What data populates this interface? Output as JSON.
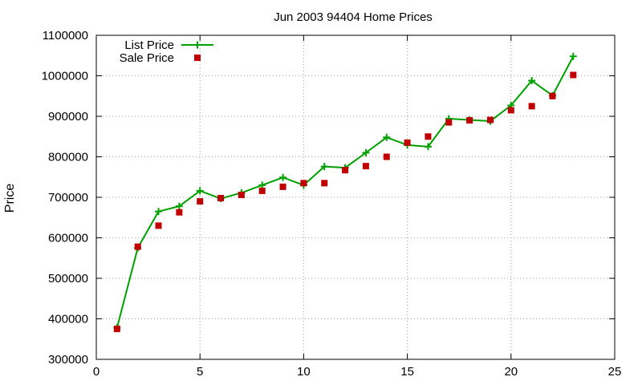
{
  "chart_data": {
    "type": "line",
    "title": "Jun 2003 94404 Home Prices",
    "xlabel": "",
    "ylabel": "Price",
    "xlim": [
      0,
      25
    ],
    "ylim": [
      300000,
      1100000
    ],
    "xticks": [
      0,
      5,
      10,
      15,
      20,
      25
    ],
    "yticks": [
      300000,
      400000,
      500000,
      600000,
      700000,
      800000,
      900000,
      1000000,
      1100000
    ],
    "grid": true,
    "legend_position": "top-left",
    "series": [
      {
        "name": "List Price",
        "style": "line-with-plus-markers",
        "color": "#00a000",
        "x": [
          1,
          2,
          3,
          4,
          5,
          6,
          7,
          8,
          9,
          10,
          11,
          12,
          13,
          14,
          15,
          16,
          17,
          18,
          19,
          20,
          21,
          22,
          23
        ],
        "values": [
          378000,
          575000,
          665000,
          678000,
          716000,
          697000,
          711000,
          730000,
          749000,
          730000,
          776000,
          773000,
          810000,
          848000,
          829000,
          825000,
          894000,
          891000,
          888000,
          927000,
          988000,
          951000,
          1048000
        ]
      },
      {
        "name": "Sale Price",
        "style": "square-markers",
        "color": "#c00000",
        "x": [
          1,
          2,
          3,
          4,
          5,
          6,
          7,
          8,
          9,
          10,
          11,
          12,
          13,
          14,
          15,
          16,
          17,
          18,
          19,
          20,
          21,
          22,
          23
        ],
        "values": [
          375000,
          578000,
          630000,
          663000,
          690000,
          698000,
          706000,
          716000,
          726000,
          735000,
          735000,
          767000,
          777000,
          800000,
          835000,
          850000,
          885000,
          890000,
          891000,
          915000,
          925000,
          950000,
          1002000
        ]
      }
    ]
  }
}
